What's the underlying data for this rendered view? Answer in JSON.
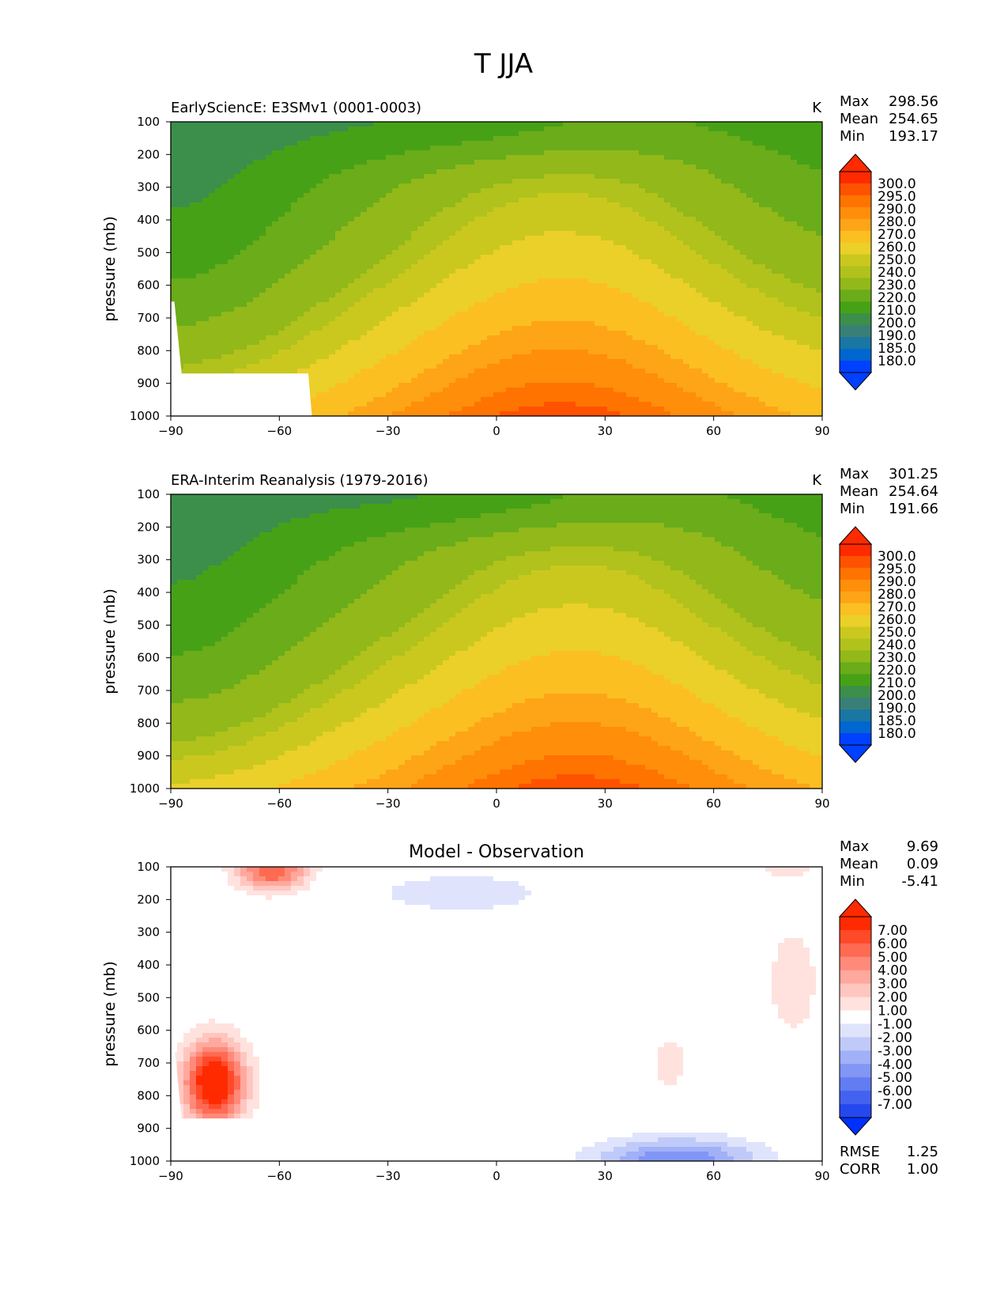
{
  "figure": {
    "title": "T JJA"
  },
  "chart_data": [
    {
      "type": "heatmap",
      "id": "model",
      "title": "EarlySciencE: E3SMv1 (0001-0003)",
      "units": "K",
      "ylabel": "pressure (mb)",
      "xlabel": "",
      "x_ticks": [
        "−90",
        "−60",
        "−30",
        "0",
        "30",
        "60",
        "90"
      ],
      "y_ticks": [
        "100",
        "200",
        "300",
        "400",
        "500",
        "600",
        "700",
        "800",
        "900",
        "1000"
      ],
      "xlim": [
        -90,
        90
      ],
      "ylim": [
        1000,
        100
      ],
      "stats": {
        "labels": [
          "Max",
          "Mean",
          "Min"
        ],
        "values": [
          "298.56",
          "254.65",
          "193.17"
        ]
      },
      "colorbar": {
        "labels": [
          "300.0",
          "295.0",
          "290.0",
          "280.0",
          "270.0",
          "260.0",
          "250.0",
          "240.0",
          "230.0",
          "220.0",
          "210.0",
          "200.0",
          "190.0",
          "185.0",
          "180.0"
        ],
        "colors": [
          "#ff2a00",
          "#ff5200",
          "#ff7300",
          "#ff8e0a",
          "#fda517",
          "#fcbf21",
          "#ead028",
          "#cac81f",
          "#b0c21b",
          "#92b81a",
          "#6aac1a",
          "#47a116",
          "#3b8f4b",
          "#3a7f77",
          "#1a76a3",
          "#0066d0",
          "#0040ff"
        ],
        "top_color": "#ff2a00",
        "bottom_color": "#0040ff"
      }
    },
    {
      "type": "heatmap",
      "id": "obs",
      "title": "ERA-Interim Reanalysis (1979-2016)",
      "units": "K",
      "ylabel": "pressure (mb)",
      "xlabel": "",
      "x_ticks": [
        "−90",
        "−60",
        "−30",
        "0",
        "30",
        "60",
        "90"
      ],
      "y_ticks": [
        "100",
        "200",
        "300",
        "400",
        "500",
        "600",
        "700",
        "800",
        "900",
        "1000"
      ],
      "xlim": [
        -90,
        90
      ],
      "ylim": [
        1000,
        100
      ],
      "stats": {
        "labels": [
          "Max",
          "Mean",
          "Min"
        ],
        "values": [
          "301.25",
          "254.64",
          "191.66"
        ]
      },
      "colorbar": {
        "labels": [
          "300.0",
          "295.0",
          "290.0",
          "280.0",
          "270.0",
          "260.0",
          "250.0",
          "240.0",
          "230.0",
          "220.0",
          "210.0",
          "200.0",
          "190.0",
          "185.0",
          "180.0"
        ],
        "colors": [
          "#ff2a00",
          "#ff5200",
          "#ff7300",
          "#ff8e0a",
          "#fda517",
          "#fcbf21",
          "#ead028",
          "#cac81f",
          "#b0c21b",
          "#92b81a",
          "#6aac1a",
          "#47a116",
          "#3b8f4b",
          "#3a7f77",
          "#1a76a3",
          "#0066d0",
          "#0040ff"
        ],
        "top_color": "#ff2a00",
        "bottom_color": "#0040ff"
      }
    },
    {
      "type": "heatmap",
      "id": "diff",
      "title": "Model - Observation",
      "units": "",
      "ylabel": "pressure (mb)",
      "xlabel": "",
      "x_ticks": [
        "−90",
        "−60",
        "−30",
        "0",
        "30",
        "60",
        "90"
      ],
      "y_ticks": [
        "100",
        "200",
        "300",
        "400",
        "500",
        "600",
        "700",
        "800",
        "900",
        "1000"
      ],
      "xlim": [
        -90,
        90
      ],
      "ylim": [
        1000,
        100
      ],
      "stats": {
        "labels": [
          "Max",
          "Mean",
          "Min"
        ],
        "values": [
          "9.69",
          "0.09",
          "-5.41"
        ]
      },
      "extra_stats": {
        "labels": [
          "RMSE",
          "CORR"
        ],
        "values": [
          "1.25",
          "1.00"
        ]
      },
      "colorbar": {
        "labels": [
          "7.00",
          "6.00",
          "5.00",
          "4.00",
          "3.00",
          "2.00",
          "1.00",
          "-1.00",
          "-2.00",
          "-3.00",
          "-4.00",
          "-5.00",
          "-6.00",
          "-7.00"
        ],
        "colors": [
          "#ff2a00",
          "#ff4a2a",
          "#ff6a52",
          "#ff8a7a",
          "#ffa89e",
          "#ffc6c0",
          "#ffe2de",
          "#ffffff",
          "#dfe4fc",
          "#c0caf9",
          "#a1b0f7",
          "#8196f5",
          "#627cf2",
          "#4462f0",
          "#2548ee"
        ],
        "top_color": "#ff2a00",
        "bottom_color": "#0030ff"
      }
    }
  ]
}
